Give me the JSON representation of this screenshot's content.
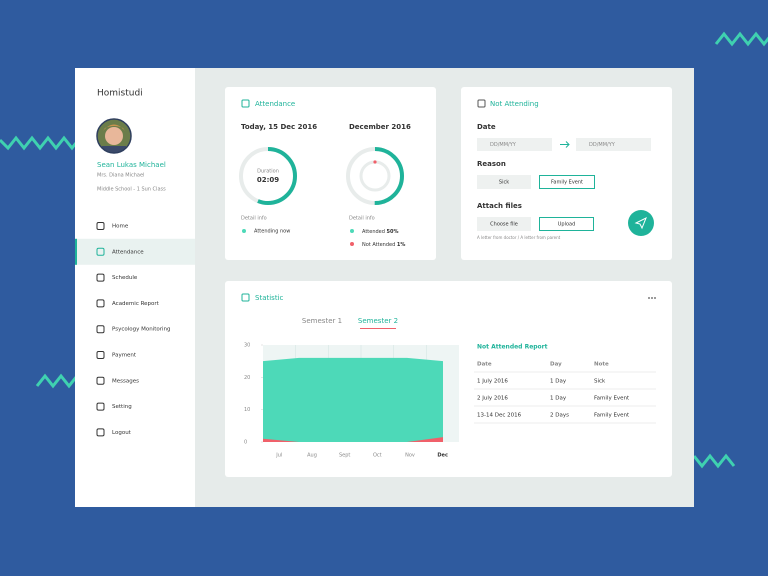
{
  "brand": "Homistudi",
  "profile": {
    "name": "Sean Lukas Michael",
    "guardian": "Mrs. Diana Michael",
    "class": "Middle School - 1 Sun Class"
  },
  "menu": [
    "Home",
    "Attendance",
    "Schedule",
    "Academic Report",
    "Psycology Monitoring",
    "Payment",
    "Messages",
    "Setting",
    "Logout"
  ],
  "attendance": {
    "title": "Attendance",
    "today": {
      "heading": "Today, 15 Dec 2016",
      "label": "Duration",
      "time": "02:09",
      "detail": "Detail info",
      "status": "Attending now"
    },
    "month": {
      "heading": "December 2016",
      "detail": "Detail info",
      "attended_label": "Attended",
      "attended_value": "50%",
      "not_label": "Not Attended",
      "not_value": "1%"
    }
  },
  "not_attending": {
    "title": "Not Attending",
    "date_label": "Date",
    "date_placeholders": [
      "DD/MM/YY",
      "DD/MM/YY"
    ],
    "reason_label": "Reason",
    "reasons": [
      "Sick",
      "Family Event"
    ],
    "attach_label": "Attach files",
    "buttons": [
      "Choose file",
      "Upload"
    ],
    "hint": "A letter from doctor / A letter from parent"
  },
  "statistic": {
    "title": "Statistic",
    "tabs": [
      "Semester 1",
      "Semester 2"
    ],
    "chart": {
      "type": "area",
      "categories": [
        "Jul",
        "Aug",
        "Sept",
        "Oct",
        "Nov",
        "Dec"
      ],
      "ylim": [
        0,
        30
      ],
      "yticks": [
        0,
        10,
        20,
        30
      ],
      "grid": true,
      "series": [
        {
          "color": "#4dd9b8",
          "values": [
            25,
            26,
            26,
            26,
            26,
            25
          ]
        },
        {
          "color": "#f0606a",
          "values": [
            1,
            0,
            0,
            0,
            0,
            1.5
          ]
        }
      ]
    },
    "report": {
      "title": "Not Attended Report",
      "columns": [
        "Date",
        "Day",
        "Note"
      ],
      "rows": [
        [
          "1 July 2016",
          "1 Day",
          "Sick"
        ],
        [
          "2 July 2016",
          "1 Day",
          "Family Event"
        ],
        [
          "13-14 Dec 2016",
          "2 Days",
          "Family Event"
        ]
      ]
    }
  }
}
